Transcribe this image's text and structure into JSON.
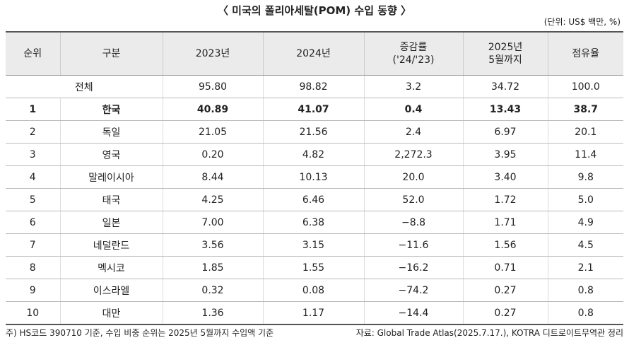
{
  "title": "〈 미국의 폴리아세탈(POM) 수입 동향 〉",
  "unit": "(단위: US$ 백만, %)",
  "table": {
    "header": [
      "순위",
      "구분",
      "2023년",
      "2024년",
      "증감률\n('24/'23)",
      "2025년\n5월까지",
      "점유율"
    ],
    "total": {
      "label": "전체",
      "values": [
        "95.80",
        "98.82",
        "3.2",
        "34.72",
        "100.0"
      ]
    },
    "rows": [
      [
        "1",
        "한국",
        "40.89",
        "41.07",
        "0.4",
        "13.43",
        "38.7"
      ],
      [
        "2",
        "독일",
        "21.05",
        "21.56",
        "2.4",
        "6.97",
        "20.1"
      ],
      [
        "3",
        "영국",
        "0.20",
        "4.82",
        "2,272.3",
        "3.95",
        "11.4"
      ],
      [
        "4",
        "말레이시아",
        "8.44",
        "10.13",
        "20.0",
        "3.40",
        "9.8"
      ],
      [
        "5",
        "태국",
        "4.25",
        "6.46",
        "52.0",
        "1.72",
        "5.0"
      ],
      [
        "6",
        "일본",
        "7.00",
        "6.38",
        "−8.8",
        "1.71",
        "4.9"
      ],
      [
        "7",
        "네덜란드",
        "3.56",
        "3.15",
        "−11.6",
        "1.56",
        "4.5"
      ],
      [
        "8",
        "멕시코",
        "1.85",
        "1.55",
        "−16.2",
        "0.71",
        "2.1"
      ],
      [
        "9",
        "이스라엘",
        "0.32",
        "0.08",
        "−74.2",
        "0.27",
        "0.8"
      ],
      [
        "10",
        "대만",
        "1.36",
        "1.17",
        "−14.4",
        "0.27",
        "0.8"
      ]
    ]
  },
  "footnote": "주) HS코드 390710 기준, 수입 비중 순위는 2025년 5월까지 수입액 기준",
  "source": "자료: Global Trade Atlas(2025.7.17.), KOTRA 디트로이트무역관 정리"
}
